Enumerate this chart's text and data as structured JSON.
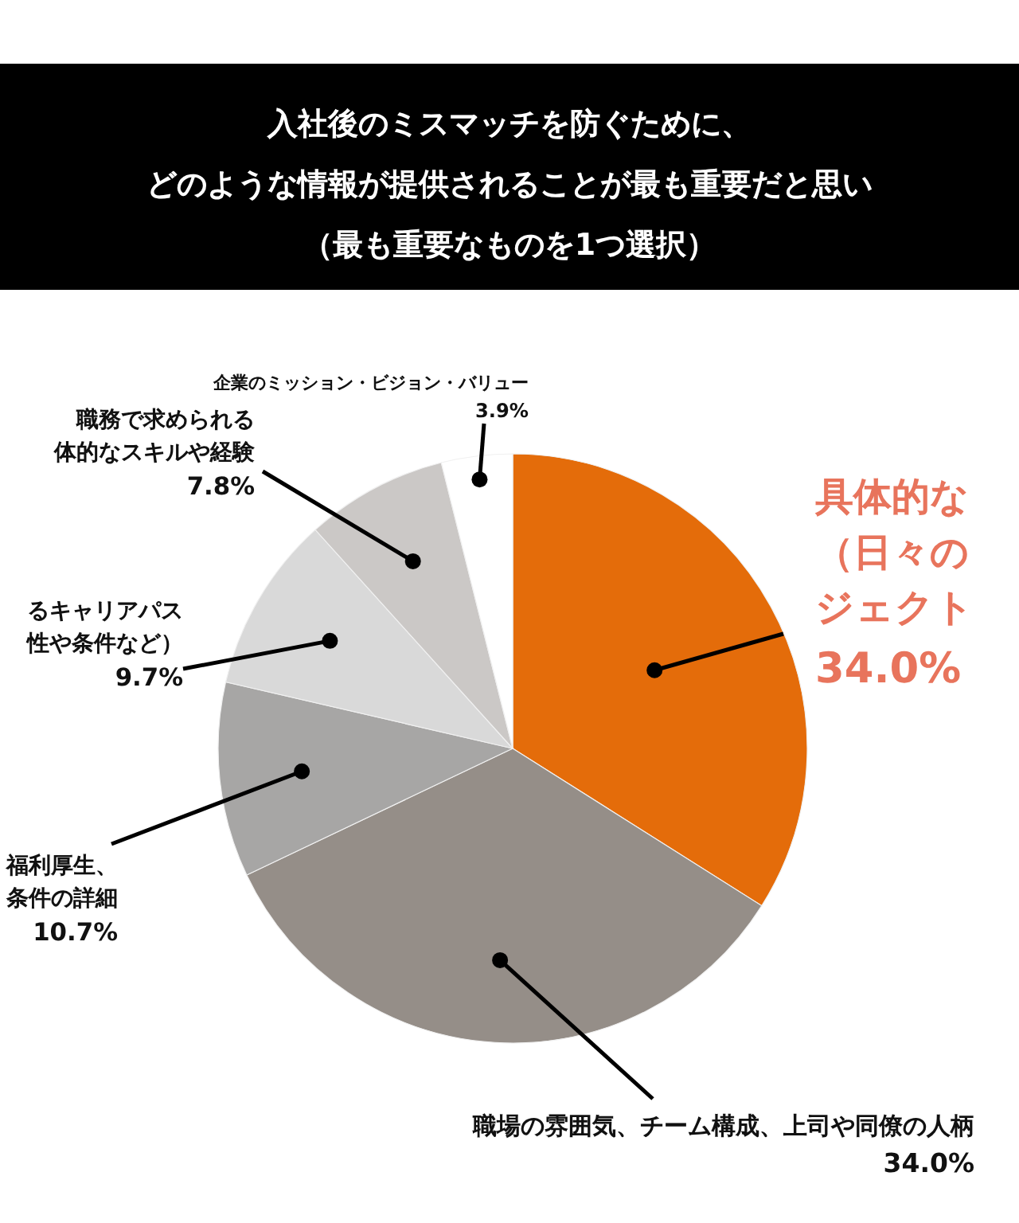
{
  "chart_data": {
    "type": "pie",
    "title": "入社後のミスマッチを防ぐために、どのような情報が提供されることが最も重要だと思い",
    "subtitle": "（最も重要なものを1つ選択）",
    "categories": [
      "具体的な（日々のジェクト",
      "職場の雰囲気、チーム構成、上司や同僚の人柄",
      "福利厚生、条件の詳細",
      "るキャリアパス性や条件など）",
      "職務で求められる体的なスキルや経験",
      "企業のミッション・ビジョン・バリュー"
    ],
    "values": [
      34.0,
      34.0,
      10.7,
      9.7,
      7.8,
      3.9
    ],
    "colors": [
      "#e46c0a",
      "#958e88",
      "#a7a6a5",
      "#d9d9d9",
      "#cbc8c6",
      "#ffffff"
    ],
    "value_labels": [
      "34.0%",
      "34.0%",
      "10.7%",
      "9.7%",
      "7.8%",
      "3.9%"
    ]
  }
}
